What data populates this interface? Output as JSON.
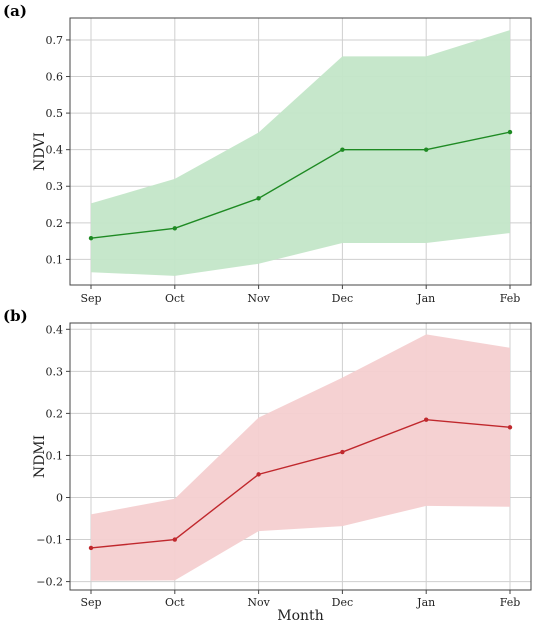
{
  "chart_data": [
    {
      "panel_label": "(a)",
      "type": "line",
      "categories": [
        "Sep",
        "Oct",
        "Nov",
        "Dec",
        "Jan",
        "Feb"
      ],
      "series": [
        {
          "values": [
            0.158,
            0.185,
            0.267,
            0.4,
            0.4,
            0.448
          ],
          "band_lower": [
            0.065,
            0.055,
            0.088,
            0.145,
            0.145,
            0.172
          ],
          "band_upper": [
            0.253,
            0.32,
            0.447,
            0.655,
            0.655,
            0.727
          ],
          "line_color": "#1e8a23",
          "band_color": "#c3e6c8"
        }
      ],
      "xlabel": "",
      "ylabel": "NDVI",
      "ylim": [
        0.03,
        0.76
      ],
      "yticks": [
        0.1,
        0.2,
        0.3,
        0.4,
        0.5,
        0.6,
        0.7
      ],
      "ytick_labels": [
        "0.1",
        "0.2",
        "0.3",
        "0.4",
        "0.5",
        "0.6",
        "0.7"
      ],
      "grid": true
    },
    {
      "panel_label": "(b)",
      "type": "line",
      "categories": [
        "Sep",
        "Oct",
        "Nov",
        "Dec",
        "Jan",
        "Feb"
      ],
      "series": [
        {
          "values": [
            -0.12,
            -0.1,
            0.055,
            0.108,
            0.185,
            0.167
          ],
          "band_lower": [
            -0.198,
            -0.197,
            -0.08,
            -0.068,
            -0.02,
            -0.022
          ],
          "band_upper": [
            -0.04,
            -0.003,
            0.19,
            0.285,
            0.388,
            0.356
          ],
          "line_color": "#c0282d",
          "band_color": "#f4cfd0"
        }
      ],
      "xlabel": "Month",
      "ylabel": "NDMI",
      "ylim": [
        -0.22,
        0.415
      ],
      "yticks": [
        -0.2,
        -0.1,
        0,
        0.1,
        0.2,
        0.3,
        0.4
      ],
      "ytick_labels": [
        "−0.2",
        "−0.1",
        "0",
        "0.1",
        "0.2",
        "0.3",
        "0.4"
      ],
      "grid": true
    }
  ]
}
